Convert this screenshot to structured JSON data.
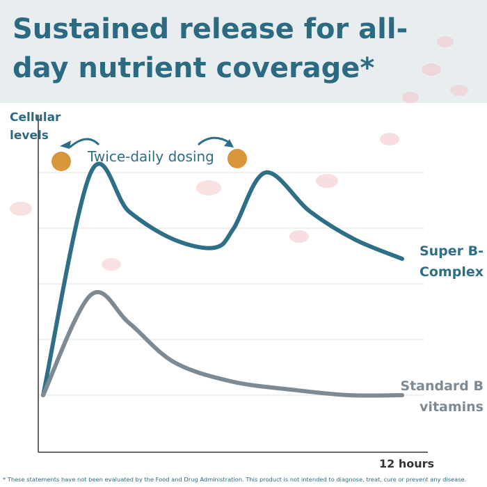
{
  "chart_data": {
    "type": "line",
    "title": "Sustained release for all-day nutrient coverage*",
    "y_label": "Cellular levels",
    "x_label": "12 hours",
    "annotation": "Twice-daily dosing",
    "footnote": "* These statements have not been evaluated by the Food and Drug Administration. This product is not intended to diagnose, treat, cure or prevent any disease.",
    "xlim": [
      0,
      12
    ],
    "ylim": [
      0,
      100
    ],
    "series": [
      {
        "name": "Super B- Complex",
        "color": "#2e6e86",
        "x": [
          0,
          1.5,
          2.7,
          4.1,
          5.4,
          6,
          7,
          8.4,
          9.8,
          11.3
        ],
        "values": [
          20,
          100,
          86,
          76,
          73,
          80,
          100,
          86,
          76,
          69
        ]
      },
      {
        "name": "Standard B vitamins",
        "color": "#7d8a94",
        "x": [
          0,
          1.5,
          2.7,
          4.1,
          5.9,
          7.8,
          9.6,
          11.3
        ],
        "values": [
          20,
          56,
          46,
          32,
          25,
          22,
          20,
          20
        ]
      }
    ]
  }
}
